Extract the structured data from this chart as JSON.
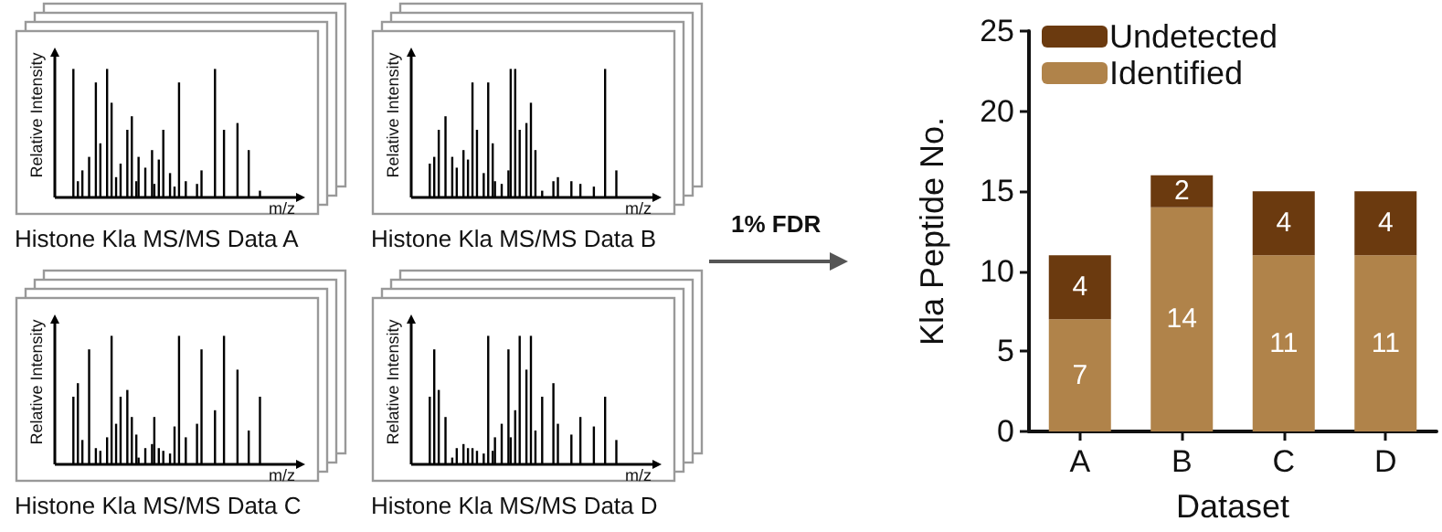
{
  "chart_data": {
    "type": "bar",
    "stacked": true,
    "data_labels": true,
    "legend": "top left",
    "grid": false,
    "categories": [
      "A",
      "B",
      "C",
      "D"
    ],
    "series": [
      {
        "name": "Identified",
        "color": "#b0834a",
        "values": [
          7,
          14,
          11,
          11
        ]
      },
      {
        "name": "Undetected",
        "color": "#6b3a0f",
        "values": [
          4,
          2,
          4,
          4
        ]
      }
    ],
    "ylim": [
      0,
      25
    ],
    "yticks": [
      0,
      5,
      10,
      15,
      20,
      25
    ],
    "xlabel": "Dataset",
    "ylabel": "Kla Peptide No.",
    "annotations": [
      "Relative Intensity",
      "m/z",
      "Histone Kla MS/MS Data A",
      "Relative Intensity",
      "m/z",
      "Histone Kla MS/MS Data B",
      "Relative Intensity",
      "m/z",
      "Histone Kla MS/MS Data C",
      "Relative Intensity",
      "m/z",
      "Histone Kla MS/MS Data D",
      "1% FDR"
    ]
  }
}
